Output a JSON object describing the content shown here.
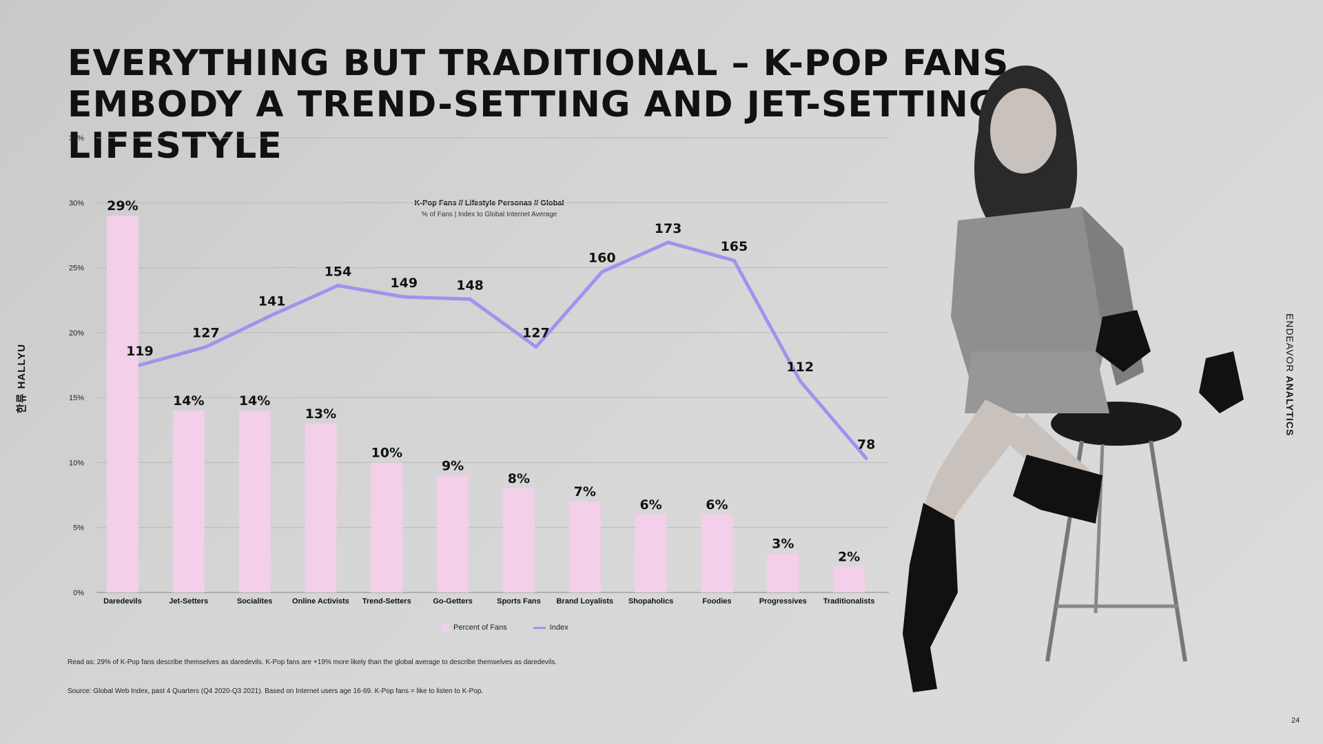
{
  "title": "Everything but traditional – K-Pop fans embody a trend-setting and jet-setting lifestyle",
  "side_brand": {
    "korean": "한류",
    "latin": "HALLYU"
  },
  "right_brand": {
    "light": "ENDEAVOR",
    "bold": "ANALYTICS"
  },
  "chart_data": {
    "type": "bar",
    "title": "K-Pop Fans // Lifestyle Personas // Global",
    "subtitle": "% of Fans | Index to Global Internet Average",
    "categories": [
      "Daredevils",
      "Jet-Setters",
      "Socialites",
      "Online Activists",
      "Trend-Setters",
      "Go-Getters",
      "Sports Fans",
      "Brand Loyalists",
      "Shopaholics",
      "Foodies",
      "Progressives",
      "Traditionalists"
    ],
    "series": [
      {
        "name": "Percent of Fans",
        "type": "bar",
        "axis": "left",
        "values": [
          29,
          14,
          14,
          13,
          10,
          9,
          8,
          7,
          6,
          6,
          3,
          2
        ],
        "labels": [
          "29%",
          "14%",
          "14%",
          "13%",
          "10%",
          "9%",
          "8%",
          "7%",
          "6%",
          "6%",
          "3%",
          "2%"
        ],
        "color": "#f3cfe9"
      },
      {
        "name": "Index",
        "type": "line",
        "axis": "right",
        "values": [
          119,
          127,
          141,
          154,
          149,
          148,
          127,
          160,
          173,
          165,
          112,
          78
        ],
        "labels": [
          "119",
          "127",
          "141",
          "154",
          "149",
          "148",
          "127",
          "160",
          "173",
          "165",
          "112",
          "78"
        ],
        "color": "#9f93ee"
      }
    ],
    "y_left": {
      "ticks": [
        "0%",
        "5%",
        "10%",
        "15%",
        "20%",
        "25%",
        "30%",
        "35%"
      ],
      "range": [
        0,
        35
      ]
    },
    "y_right": {
      "ticks": [
        "0",
        "20",
        "40",
        "60",
        "80",
        "100",
        "120",
        "140",
        "160",
        "180",
        "200"
      ],
      "range": [
        0,
        200
      ]
    },
    "grid": true,
    "legend": "bottom"
  },
  "legend": {
    "bar_label": "Percent of Fans",
    "line_label": "Index"
  },
  "notes": {
    "read_as": "Read as: 29% of K-Pop fans describe themselves as daredevils. K-Pop fans are +19% more likely than the global average to describe themselves as daredevils.",
    "source": "Source: Global Web Index, past 4 Quarters (Q4 2020-Q3 2021). Based on Internet users age 16-69. K-Pop fans = like to listen to K-Pop."
  },
  "page_number": "24"
}
